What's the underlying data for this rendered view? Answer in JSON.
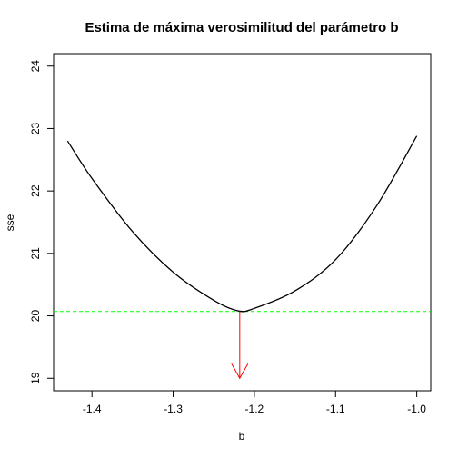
{
  "chart_data": {
    "type": "line",
    "title": "Estima de máxima verosimilitud del parámetro b",
    "xlabel": "b",
    "ylabel": "sse",
    "xlim": [
      -1.4472,
      -0.9828
    ],
    "ylim": [
      18.8,
      24.2
    ],
    "x_ticks": [
      -1.4,
      -1.3,
      -1.2,
      -1.1,
      -1.0
    ],
    "x_tick_labels": [
      "-1.4",
      "-1.3",
      "-1.2",
      "-1.1",
      "-1.0"
    ],
    "y_ticks": [
      19,
      20,
      21,
      22,
      23,
      24
    ],
    "y_tick_labels": [
      "19",
      "20",
      "21",
      "22",
      "23",
      "24"
    ],
    "grid": false,
    "series": [
      {
        "color": "#000000",
        "style": "solid",
        "x": [
          -1.43,
          -1.4,
          -1.35,
          -1.3,
          -1.25,
          -1.22,
          -1.2,
          -1.15,
          -1.1,
          -1.05,
          -1.0
        ],
        "y": [
          22.8,
          22.2,
          21.35,
          20.7,
          20.25,
          20.08,
          20.12,
          20.4,
          20.9,
          21.75,
          22.88
        ]
      }
    ],
    "hline": {
      "y": 20.07,
      "color": "#00ff00",
      "style": "dashed"
    },
    "arrow": {
      "x": -1.218,
      "y_from": 20.07,
      "y_to": 19.0,
      "color": "#ff0000"
    }
  }
}
